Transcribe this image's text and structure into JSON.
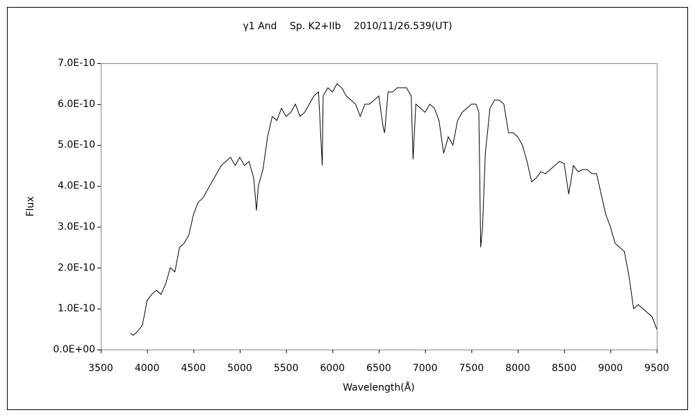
{
  "chart_data": {
    "type": "line",
    "title": "γ1 And　 Sp. K2+IIb　 2010/11/26.539(UT)",
    "x_label": "Wavelength(Å)",
    "y_label": "Flux",
    "x": [
      3820,
      3850,
      3900,
      3950,
      4000,
      4050,
      4100,
      4150,
      4200,
      4250,
      4300,
      4350,
      4400,
      4450,
      4500,
      4550,
      4600,
      4650,
      4700,
      4750,
      4800,
      4850,
      4900,
      4950,
      5000,
      5050,
      5100,
      5150,
      5180,
      5200,
      5250,
      5300,
      5350,
      5400,
      5450,
      5500,
      5550,
      5600,
      5650,
      5700,
      5750,
      5800,
      5850,
      5890,
      5900,
      5950,
      6000,
      6050,
      6100,
      6150,
      6200,
      6250,
      6300,
      6350,
      6400,
      6450,
      6500,
      6550,
      6563,
      6600,
      6650,
      6700,
      6750,
      6800,
      6850,
      6870,
      6900,
      6950,
      7000,
      7050,
      7100,
      7150,
      7200,
      7250,
      7300,
      7350,
      7400,
      7450,
      7500,
      7550,
      7580,
      7600,
      7620,
      7650,
      7700,
      7750,
      7800,
      7850,
      7900,
      7950,
      8000,
      8050,
      8100,
      8150,
      8200,
      8250,
      8300,
      8350,
      8400,
      8450,
      8500,
      8550,
      8600,
      8650,
      8700,
      8750,
      8800,
      8850,
      8900,
      8950,
      9000,
      9050,
      9100,
      9150,
      9200,
      9250,
      9300,
      9350,
      9400,
      9450,
      9500
    ],
    "series": [
      {
        "name": "Flux",
        "color": "#000000",
        "values": [
          4e-11,
          3.5e-11,
          4.5e-11,
          6e-11,
          1.2e-10,
          1.35e-10,
          1.45e-10,
          1.35e-10,
          1.6e-10,
          2e-10,
          1.9e-10,
          2.5e-10,
          2.6e-10,
          2.8e-10,
          3.3e-10,
          3.6e-10,
          3.7e-10,
          3.9e-10,
          4.1e-10,
          4.3e-10,
          4.5e-10,
          4.6e-10,
          4.7e-10,
          4.5e-10,
          4.7e-10,
          4.5e-10,
          4.6e-10,
          4.2e-10,
          3.4e-10,
          4e-10,
          4.4e-10,
          5.2e-10,
          5.7e-10,
          5.6e-10,
          5.9e-10,
          5.7e-10,
          5.8e-10,
          6e-10,
          5.7e-10,
          5.8e-10,
          6e-10,
          6.2e-10,
          6.3e-10,
          4.5e-10,
          6.2e-10,
          6.4e-10,
          6.3e-10,
          6.5e-10,
          6.4e-10,
          6.2e-10,
          6.1e-10,
          6e-10,
          5.7e-10,
          6e-10,
          6e-10,
          6.1e-10,
          6.2e-10,
          5.4e-10,
          5.3e-10,
          6.3e-10,
          6.3e-10,
          6.4e-10,
          6.4e-10,
          6.4e-10,
          6.2e-10,
          4.65e-10,
          6e-10,
          5.9e-10,
          5.8e-10,
          6e-10,
          5.9e-10,
          5.6e-10,
          4.8e-10,
          5.2e-10,
          5e-10,
          5.6e-10,
          5.8e-10,
          5.9e-10,
          6e-10,
          6e-10,
          5.8e-10,
          2.5e-10,
          3e-10,
          4.8e-10,
          5.9e-10,
          6.1e-10,
          6.1e-10,
          6e-10,
          5.3e-10,
          5.3e-10,
          5.2e-10,
          5e-10,
          4.6e-10,
          4.1e-10,
          4.2e-10,
          4.35e-10,
          4.3e-10,
          4.4e-10,
          4.5e-10,
          4.6e-10,
          4.55e-10,
          3.8e-10,
          4.5e-10,
          4.35e-10,
          4.4e-10,
          4.4e-10,
          4.3e-10,
          4.3e-10,
          3.8e-10,
          3.3e-10,
          3e-10,
          2.6e-10,
          2.5e-10,
          2.4e-10,
          1.8e-10,
          1e-10,
          1.1e-10,
          1e-10,
          9e-11,
          8e-11,
          5e-11
        ]
      }
    ],
    "xlim": [
      3500,
      9500
    ],
    "xticks": [
      3500,
      4000,
      4500,
      5000,
      5500,
      6000,
      6500,
      7000,
      7500,
      8000,
      8500,
      9000,
      9500
    ],
    "ylim": [
      0,
      7e-10
    ],
    "yticks": [
      {
        "value": 0,
        "label": "0.0E+00"
      },
      {
        "value": 1e-10,
        "label": "1.0E-10"
      },
      {
        "value": 2e-10,
        "label": "2.0E-10"
      },
      {
        "value": 3e-10,
        "label": "3.0E-10"
      },
      {
        "value": 4e-10,
        "label": "4.0E-10"
      },
      {
        "value": 5e-10,
        "label": "5.0E-10"
      },
      {
        "value": 6e-10,
        "label": "6.0E-10"
      },
      {
        "value": 7e-10,
        "label": "7.0E-10"
      }
    ],
    "grid": false
  }
}
